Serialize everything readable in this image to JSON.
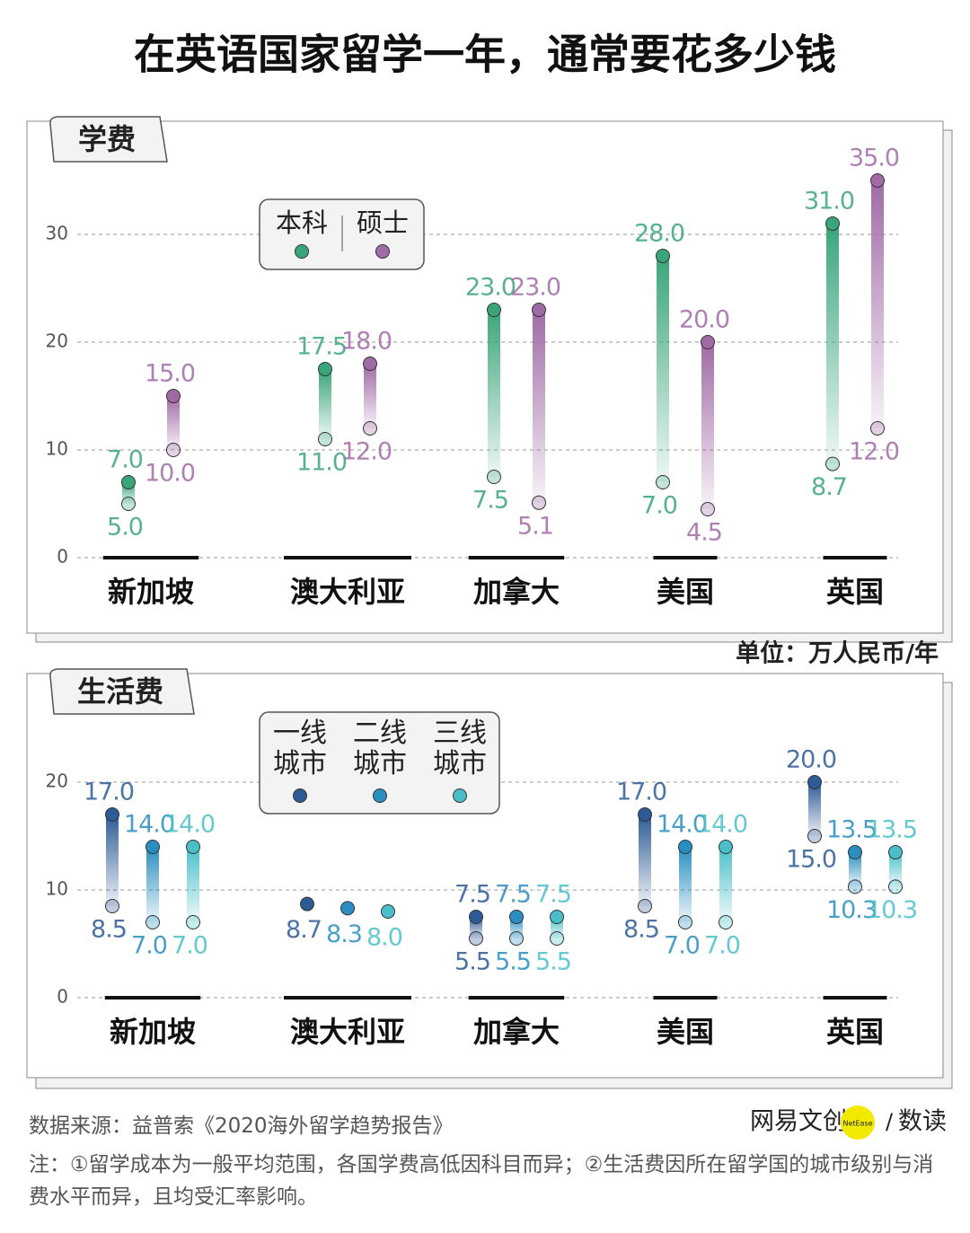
{
  "title": "在英语国家留学一年，通常要花多少钱",
  "unit": "单位：万人民币/年",
  "source": "数据来源：益普索《2020海外留学趋势报告》",
  "note": "注：①留学成本为一般平均范围，各国学费高低因科目而异；②生活费因所在留学国的城市级别与消费水平而异，且均受汇率影响。",
  "brand": {
    "name": "网易文创",
    "badge": "NetEase",
    "column": "数读"
  },
  "chart_data": [
    {
      "type": "range",
      "title": "学费",
      "categories": [
        "新加坡",
        "澳大利亚",
        "加拿大",
        "美国",
        "英国"
      ],
      "ylim": [
        0,
        38
      ],
      "yticks": [
        0,
        10,
        20,
        30
      ],
      "grid": true,
      "series": [
        {
          "name": "本科",
          "color": "#3aa57a",
          "values": [
            7.0,
            17.5,
            23.0,
            28.0,
            31.0
          ],
          "value_labels": [
            "7.0",
            "17.5",
            "23.0",
            "28.0",
            "31.0"
          ],
          "low_values": [
            5.0,
            11.0,
            7.5,
            7.0,
            8.7
          ],
          "low_value_labels": [
            "5.0",
            "11.0",
            "7.5",
            "7.0",
            "8.7"
          ]
        },
        {
          "name": "硕士",
          "color": "#a06aa6",
          "values": [
            15.0,
            18.0,
            23.0,
            20.0,
            35.0
          ],
          "value_labels": [
            "15.0",
            "18.0",
            "23.0",
            "20.0",
            "35.0"
          ],
          "low_values": [
            10.0,
            12.0,
            5.1,
            4.5,
            12.0
          ],
          "low_value_labels": [
            "10.0",
            "12.0",
            "5.1",
            "4.5",
            "12.0"
          ]
        }
      ]
    },
    {
      "type": "range",
      "title": "生活费",
      "categories": [
        "新加坡",
        "澳大利亚",
        "加拿大",
        "美国",
        "英国"
      ],
      "ylim": [
        0,
        22
      ],
      "yticks": [
        0,
        10,
        20
      ],
      "grid": true,
      "series": [
        {
          "name": "一线城市",
          "color": "#2d5b95",
          "values": [
            17.0,
            8.7,
            7.5,
            17.0,
            20.0
          ],
          "value_labels": [
            "17.0",
            "8.7",
            "7.5",
            "17.0",
            "20.0"
          ],
          "low_values": [
            8.5,
            null,
            5.5,
            8.5,
            15.0
          ],
          "low_value_labels": [
            "8.5",
            null,
            "5.5",
            "8.5",
            "15.0"
          ]
        },
        {
          "name": "二线城市",
          "color": "#2a8ec0",
          "values": [
            14.0,
            8.3,
            7.5,
            14.0,
            13.5
          ],
          "value_labels": [
            "14.0",
            "8.3",
            "7.5",
            "14.0",
            "13.5"
          ],
          "low_values": [
            7.0,
            null,
            5.5,
            7.0,
            10.3
          ],
          "low_value_labels": [
            "7.0",
            null,
            "5.5",
            "7.0",
            "10.3"
          ]
        },
        {
          "name": "三线城市",
          "color": "#4bbfc9",
          "values": [
            14.0,
            8.0,
            7.5,
            14.0,
            13.5
          ],
          "value_labels": [
            "14.0",
            "8.0",
            "7.5",
            "14.0",
            "13.5"
          ],
          "low_values": [
            7.0,
            null,
            5.5,
            7.0,
            10.3
          ],
          "low_value_labels": [
            "7.0",
            null,
            "5.5",
            "7.0",
            "10.3"
          ]
        }
      ]
    }
  ]
}
